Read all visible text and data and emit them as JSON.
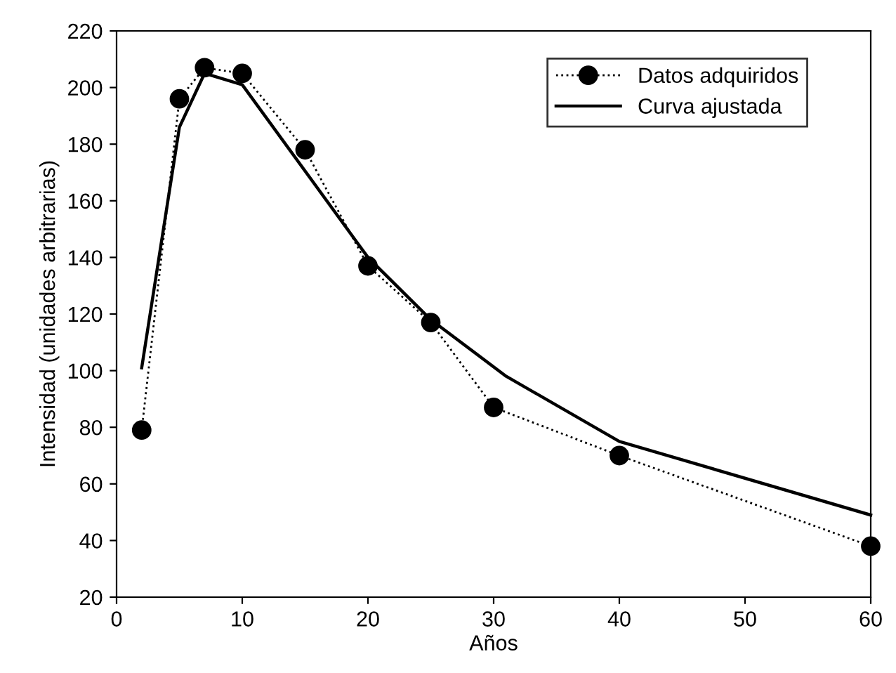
{
  "chart_data": {
    "type": "line",
    "xlabel": "Años",
    "ylabel": "Intensidad (unidades arbitrarias)",
    "series": [
      {
        "name": "Datos adquiridos",
        "color": "#000000",
        "x": [
          2,
          5,
          7,
          10,
          15,
          20,
          25,
          30,
          40,
          60
        ],
        "values": [
          79,
          196,
          207,
          205,
          178,
          137,
          117,
          87,
          70,
          38
        ],
        "marker": "circle",
        "line_style": "dotted"
      },
      {
        "name": "Curva ajustada",
        "color": "#000000",
        "x": [
          2,
          5,
          7,
          10,
          20,
          25,
          31,
          40,
          60
        ],
        "values": [
          101,
          186,
          205,
          201,
          140,
          118,
          98,
          75,
          49
        ],
        "marker": "none",
        "line_style": "solid"
      }
    ],
    "xlim": [
      0,
      60
    ],
    "xticks": [
      0,
      10,
      20,
      30,
      40,
      50,
      60
    ],
    "ylim": [
      20,
      220
    ],
    "yticks": [
      20,
      40,
      60,
      80,
      100,
      120,
      140,
      160,
      180,
      200,
      220
    ],
    "grid": false,
    "legend": "top right"
  }
}
